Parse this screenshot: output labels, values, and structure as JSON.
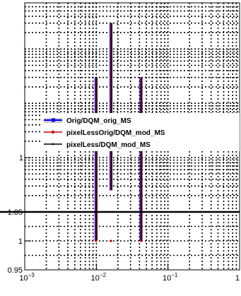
{
  "chart_data": [
    {
      "type": "line",
      "panel": "upper",
      "xscale": "log",
      "yscale": "log",
      "xlim": [
        0.001,
        1
      ],
      "grid": true,
      "ytick_labels": [
        {
          "value": 1,
          "label": "1"
        }
      ],
      "legend_position": "middle-left",
      "series": [
        {
          "name": "Orig/DQM_orig_MS",
          "color": "#0000ff",
          "marker": "square",
          "x": [
            0.0099,
            0.016,
            0.042
          ],
          "y": [
            3,
            30,
            3
          ],
          "yerr_low": [
            0.03,
            0.25,
            0.03
          ],
          "yerr_high": [
            30,
            300,
            30
          ]
        },
        {
          "name": "pixelLessOrig/DQM_mod_MS",
          "color": "#cc0000",
          "marker": "circle",
          "x": [
            0.0099,
            0.016,
            0.042
          ],
          "y": [
            3,
            30,
            3
          ],
          "yerr_low": [
            0.03,
            0.25,
            0.03
          ],
          "yerr_high": [
            30,
            300,
            30
          ]
        },
        {
          "name": "pixelLess/DQM_mod_MS",
          "color": "#000000",
          "marker": "dot",
          "x": [
            0.0099,
            0.016,
            0.042
          ],
          "y": [
            3,
            30,
            3
          ],
          "yerr_low": [
            0.03,
            0.25,
            0.03
          ],
          "yerr_high": [
            30,
            300,
            30
          ]
        }
      ]
    },
    {
      "type": "line",
      "panel": "ratio",
      "xscale": "log",
      "xlim": [
        0.001,
        1
      ],
      "ylim": [
        0.95,
        1.05
      ],
      "grid": true,
      "xtick_labels": [
        {
          "value": 0.001,
          "label": "10-3"
        },
        {
          "value": 0.01,
          "label": "10-2"
        },
        {
          "value": 0.1,
          "label": "10-1"
        },
        {
          "value": 1,
          "label": "1"
        }
      ],
      "ytick_labels": [
        {
          "value": 0.95,
          "label": "0.95"
        },
        {
          "value": 1,
          "label": "1"
        },
        {
          "value": 1.05,
          "label": "1.05"
        }
      ],
      "series": [
        {
          "name": "pixelLessOrig/DQM_mod_MS",
          "color": "#cc0000",
          "x": [
            0.0099,
            0.016,
            0.042
          ],
          "y": [
            1,
            1,
            1
          ]
        }
      ]
    }
  ]
}
